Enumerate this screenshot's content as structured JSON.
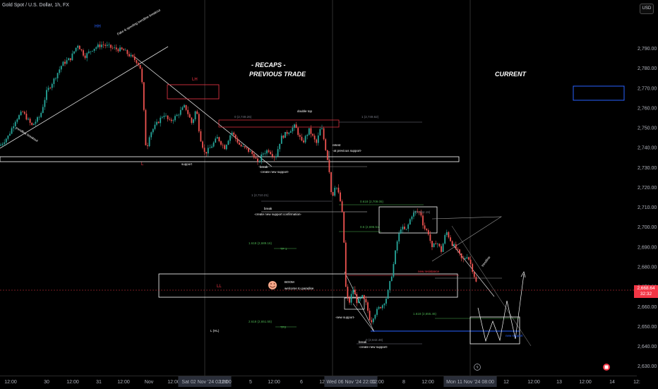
{
  "symbol_title": "Gold Spot / U.S. Dollar, 1h, FX",
  "currency_button": "USD",
  "current_price": "2,668.64",
  "countdown": "32:32",
  "chart_data": {
    "type": "candlestick",
    "ylim": [
      2626,
      2809
    ],
    "y_ticks": [
      2630,
      2640,
      2650,
      2660,
      2670,
      2680,
      2690,
      2700,
      2710,
      2720,
      2730,
      2740,
      2750,
      2760,
      2770,
      2780,
      2790
    ],
    "y_tick_labels": [
      "2,630.00",
      "2,640.00",
      "2,650.00",
      "2,660.00",
      "2,670.00",
      "2,680.00",
      "2,690.00",
      "2,700.00",
      "2,710.00",
      "2,720.00",
      "2,730.00",
      "2,740.00",
      "2,750.00",
      "2,760.00",
      "2,770.00",
      "2,780.00",
      "2,790.00"
    ],
    "x_tick_labels": [
      "12:00",
      "30",
      "12:00",
      "31",
      "12:00",
      "Nov",
      "12:00",
      "Sat 02 Nov '24  02:00",
      "12:00",
      "5",
      "12:00",
      "6",
      "12:00",
      "Wed 06 Nov '24  22:00",
      "12:00",
      "8",
      "12:00",
      "Mon 11 Nov '24  08:00",
      "12",
      "12:00",
      "13",
      "12:00",
      "14",
      "12:"
    ],
    "price_path": [
      [
        0,
        2741
      ],
      [
        12,
        2746
      ],
      [
        22,
        2754
      ],
      [
        32,
        2758
      ],
      [
        45,
        2751
      ],
      [
        57,
        2756
      ],
      [
        66,
        2768
      ],
      [
        76,
        2774
      ],
      [
        88,
        2782
      ],
      [
        100,
        2785
      ],
      [
        110,
        2792
      ],
      [
        120,
        2786
      ],
      [
        132,
        2790
      ],
      [
        145,
        2792
      ],
      [
        160,
        2790
      ],
      [
        175,
        2789
      ],
      [
        185,
        2786
      ],
      [
        195,
        2783
      ],
      [
        200,
        2779
      ],
      [
        204,
        2757
      ],
      [
        207,
        2738
      ],
      [
        212,
        2747
      ],
      [
        222,
        2752
      ],
      [
        232,
        2757
      ],
      [
        240,
        2753
      ],
      [
        250,
        2756
      ],
      [
        262,
        2761
      ],
      [
        272,
        2752
      ],
      [
        278,
        2760
      ],
      [
        283,
        2746
      ],
      [
        290,
        2737
      ],
      [
        298,
        2740
      ],
      [
        308,
        2745
      ],
      [
        318,
        2740
      ],
      [
        328,
        2748
      ],
      [
        340,
        2741
      ],
      [
        350,
        2739
      ],
      [
        360,
        2736
      ],
      [
        365,
        2732
      ],
      [
        372,
        2737
      ],
      [
        380,
        2739
      ],
      [
        390,
        2735
      ],
      [
        398,
        2745
      ],
      [
        408,
        2748
      ],
      [
        418,
        2751
      ],
      [
        428,
        2742
      ],
      [
        438,
        2749
      ],
      [
        448,
        2742
      ],
      [
        455,
        2751
      ],
      [
        462,
        2738
      ],
      [
        466,
        2730
      ],
      [
        470,
        2714
      ],
      [
        475,
        2722
      ],
      [
        480,
        2716
      ],
      [
        484,
        2710
      ],
      [
        487,
        2694
      ],
      [
        490,
        2668
      ],
      [
        494,
        2661
      ],
      [
        500,
        2669
      ],
      [
        506,
        2662
      ],
      [
        513,
        2665
      ],
      [
        519,
        2661
      ],
      [
        525,
        2652
      ],
      [
        530,
        2656
      ],
      [
        536,
        2659
      ],
      [
        542,
        2661
      ],
      [
        548,
        2665
      ],
      [
        556,
        2678
      ],
      [
        562,
        2692
      ],
      [
        568,
        2700
      ],
      [
        575,
        2698
      ],
      [
        583,
        2706
      ],
      [
        590,
        2708
      ],
      [
        596,
        2707
      ],
      [
        600,
        2700
      ],
      [
        607,
        2697
      ],
      [
        612,
        2689
      ],
      [
        618,
        2693
      ],
      [
        625,
        2688
      ],
      [
        632,
        2698
      ],
      [
        640,
        2692
      ],
      [
        648,
        2688
      ],
      [
        655,
        2683
      ],
      [
        662,
        2686
      ],
      [
        668,
        2680
      ],
      [
        673,
        2674
      ],
      [
        677,
        2669
      ]
    ],
    "annotations": [
      {
        "text": "HH",
        "color": "#2962ff"
      },
      {
        "text": "Fake & spoofing trendline breakout",
        "color": "#ffffff"
      },
      {
        "text": "trendline breakout",
        "color": "#ffffff"
      },
      {
        "text": "LH",
        "color": "#f23645"
      },
      {
        "text": "L",
        "color": "#f23645"
      },
      {
        "text": "support",
        "color": "#ffffff"
      },
      {
        "text": "0 (2,749.26)",
        "color": "#787b86"
      },
      {
        "text": "double top",
        "color": "#ffffff"
      },
      {
        "text": "1 (2,749.62)",
        "color": "#787b86"
      },
      {
        "text": "retest",
        "color": "#ffffff"
      },
      {
        "text": "-at previous support-",
        "color": "#ffffff"
      },
      {
        "text": "break",
        "color": "#ffffff"
      },
      {
        "text": "-create new support-",
        "color": "#ffffff"
      },
      {
        "text": "1 (2,710.21)",
        "color": "#787b86"
      },
      {
        "text": "break",
        "color": "#ffffff"
      },
      {
        "text": "-create new support confirmation-",
        "color": "#ffffff"
      },
      {
        "text": "0.618 (2,709.05)",
        "color": "#4caf50"
      },
      {
        "text": "0.5 (2,696.51)",
        "color": "#4caf50"
      },
      {
        "text": "1.618 (2,689.16)",
        "color": "#4caf50"
      },
      {
        "text": "TP 1",
        "color": "#4caf50"
      },
      {
        "text": "LL",
        "color": "#f23645"
      },
      {
        "text": "BOOM",
        "color": "#ffffff"
      },
      {
        "text": "welcome to paradise",
        "color": "#ffffff"
      },
      {
        "text": "2.618 (2,651.55)",
        "color": "#4caf50"
      },
      {
        "text": "TP2",
        "color": "#4caf50"
      },
      {
        "text": "L (HL)",
        "color": "#ffffff"
      },
      {
        "text": "-new support-",
        "color": "#ffffff"
      },
      {
        "text": "0 (2,642.48)",
        "color": "#787b86"
      },
      {
        "text": "break",
        "color": "#ffffff"
      },
      {
        "text": "-create new support-",
        "color": "#ffffff"
      },
      {
        "text": "0 (2,704.19)",
        "color": "#787b86"
      },
      {
        "text": "new resistance",
        "color": "#f23645"
      },
      {
        "text": "1.618 (2,655.46)",
        "color": "#4caf50"
      },
      {
        "text": "new support",
        "color": "#2962ff"
      },
      {
        "text": "trendline",
        "color": "#ffffff"
      },
      {
        "text": "- RECAPS -",
        "color": "#ffffff"
      },
      {
        "text": "PREVIOUS TRADE",
        "color": "#ffffff"
      },
      {
        "text": "CURRENT",
        "color": "#ffffff"
      }
    ],
    "colors": {
      "up": "#26a69a",
      "down": "#ef5350",
      "background": "#000000",
      "price_line": "#f23645"
    }
  }
}
